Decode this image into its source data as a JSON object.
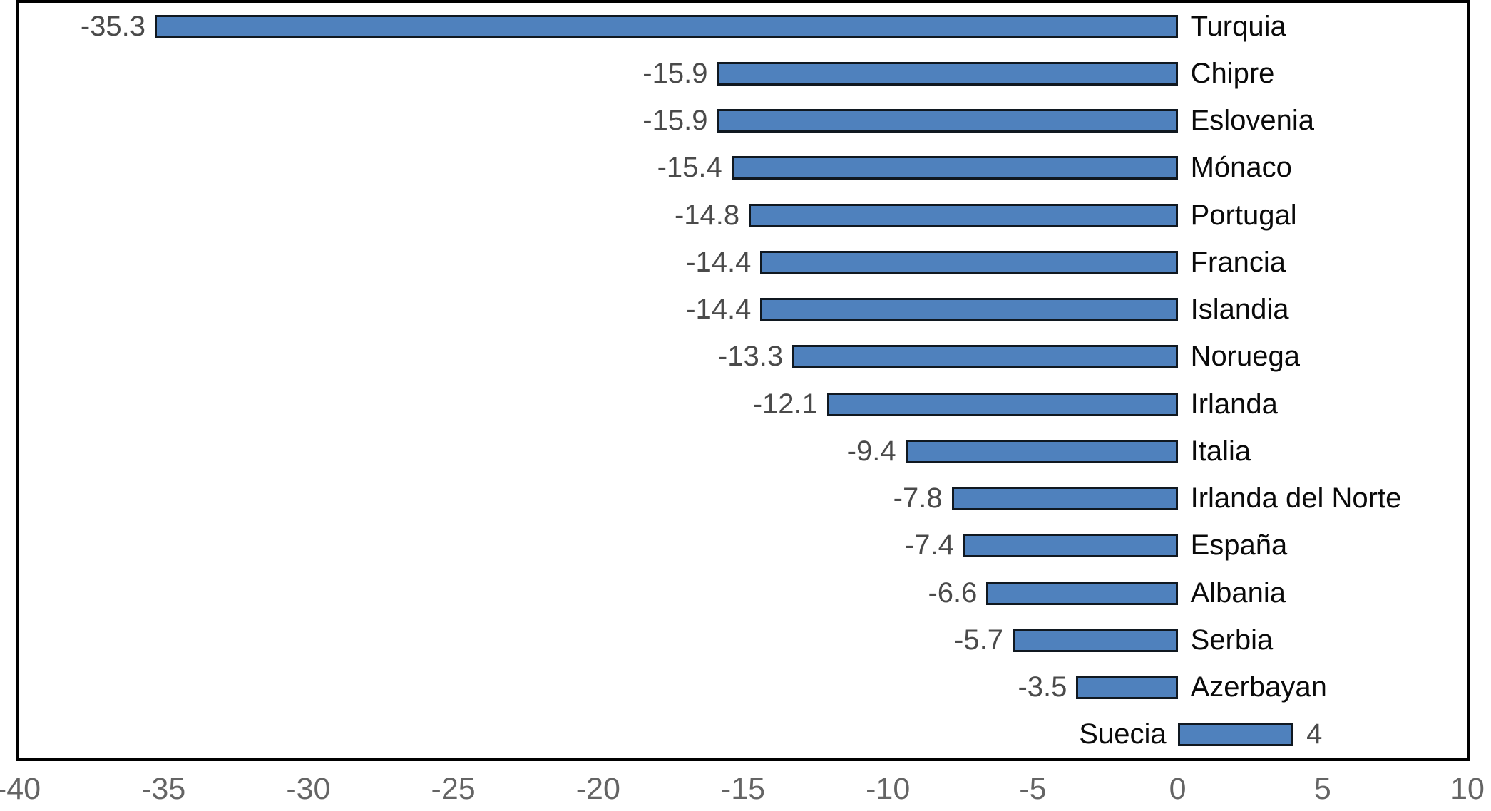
{
  "chart_data": {
    "type": "bar",
    "orientation": "horizontal",
    "title": "",
    "xlabel": "",
    "ylabel": "",
    "xlim": [
      -40,
      10
    ],
    "grid": false,
    "legend": false,
    "categories": [
      "Turquia",
      "Chipre",
      "Eslovenia",
      "Mónaco",
      "Portugal",
      "Francia",
      "Islandia",
      "Noruega",
      "Irlanda",
      "Italia",
      "Irlanda del Norte",
      "España",
      "Albania",
      "Serbia",
      "Azerbayan",
      "Suecia"
    ],
    "values": [
      -35.3,
      -15.9,
      -15.9,
      -15.4,
      -14.8,
      -14.4,
      -14.4,
      -13.3,
      -12.1,
      -9.4,
      -7.8,
      -7.4,
      -6.6,
      -5.7,
      -3.5,
      4
    ],
    "value_labels": [
      "-35.3",
      "-15.9",
      "-15.9",
      "-15.4",
      "-14.8",
      "-14.4",
      "-14.4",
      "-13.3",
      "-12.1",
      "-9.4",
      "-7.8",
      "-7.4",
      "-6.6",
      "-5.7",
      "-3.5",
      "4"
    ],
    "x_ticks": [
      {
        "value": -40,
        "label": "-40"
      },
      {
        "value": -35,
        "label": "-35"
      },
      {
        "value": -30,
        "label": "-30"
      },
      {
        "value": -25,
        "label": "-25"
      },
      {
        "value": -20,
        "label": "-20"
      },
      {
        "value": -15,
        "label": "-15"
      },
      {
        "value": -10,
        "label": "-10"
      },
      {
        "value": -5,
        "label": "-5"
      },
      {
        "value": 0,
        "label": "0"
      },
      {
        "value": 5,
        "label": "5"
      },
      {
        "value": 10,
        "label": "10"
      }
    ],
    "colors": {
      "bar_fill": "#4F81BD",
      "bar_border": "#101820",
      "category_label": "#0a0a0a",
      "value_label": "#4a4a4a",
      "tick_label": "#646464",
      "plot_border": "#000000",
      "background": "#ffffff"
    }
  }
}
